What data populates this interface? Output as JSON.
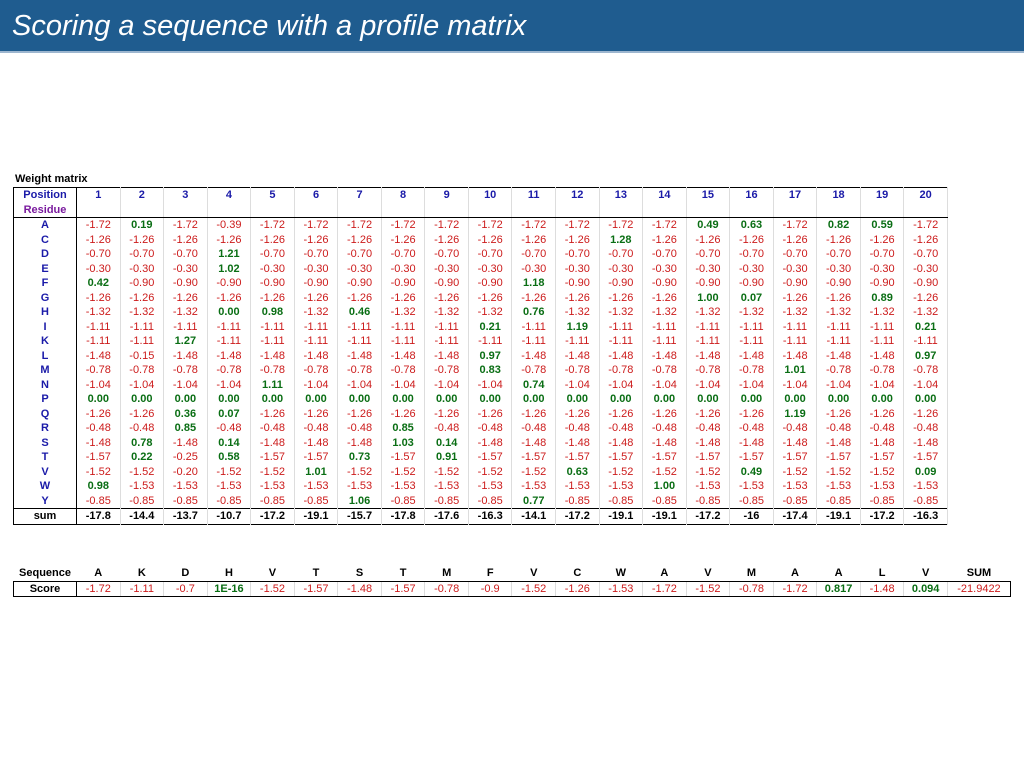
{
  "title": "Scoring a sequence with a profile matrix",
  "weight_matrix": {
    "caption": "Weight matrix",
    "position_label": "Position",
    "residue_label": "Residue",
    "positions": [
      "1",
      "2",
      "3",
      "4",
      "5",
      "6",
      "7",
      "8",
      "9",
      "10",
      "11",
      "12",
      "13",
      "14",
      "15",
      "16",
      "17",
      "18",
      "19",
      "20"
    ],
    "rows": [
      {
        "residue": "A",
        "values": [
          "-1.72",
          "0.19",
          "-1.72",
          "-0.39",
          "-1.72",
          "-1.72",
          "-1.72",
          "-1.72",
          "-1.72",
          "-1.72",
          "-1.72",
          "-1.72",
          "-1.72",
          "-1.72",
          "0.49",
          "0.63",
          "-1.72",
          "0.82",
          "0.59",
          "-1.72"
        ]
      },
      {
        "residue": "C",
        "values": [
          "-1.26",
          "-1.26",
          "-1.26",
          "-1.26",
          "-1.26",
          "-1.26",
          "-1.26",
          "-1.26",
          "-1.26",
          "-1.26",
          "-1.26",
          "-1.26",
          "1.28",
          "-1.26",
          "-1.26",
          "-1.26",
          "-1.26",
          "-1.26",
          "-1.26",
          "-1.26"
        ]
      },
      {
        "residue": "D",
        "values": [
          "-0.70",
          "-0.70",
          "-0.70",
          "1.21",
          "-0.70",
          "-0.70",
          "-0.70",
          "-0.70",
          "-0.70",
          "-0.70",
          "-0.70",
          "-0.70",
          "-0.70",
          "-0.70",
          "-0.70",
          "-0.70",
          "-0.70",
          "-0.70",
          "-0.70",
          "-0.70"
        ]
      },
      {
        "residue": "E",
        "values": [
          "-0.30",
          "-0.30",
          "-0.30",
          "1.02",
          "-0.30",
          "-0.30",
          "-0.30",
          "-0.30",
          "-0.30",
          "-0.30",
          "-0.30",
          "-0.30",
          "-0.30",
          "-0.30",
          "-0.30",
          "-0.30",
          "-0.30",
          "-0.30",
          "-0.30",
          "-0.30"
        ]
      },
      {
        "residue": "F",
        "values": [
          "0.42",
          "-0.90",
          "-0.90",
          "-0.90",
          "-0.90",
          "-0.90",
          "-0.90",
          "-0.90",
          "-0.90",
          "-0.90",
          "1.18",
          "-0.90",
          "-0.90",
          "-0.90",
          "-0.90",
          "-0.90",
          "-0.90",
          "-0.90",
          "-0.90",
          "-0.90"
        ]
      },
      {
        "residue": "G",
        "values": [
          "-1.26",
          "-1.26",
          "-1.26",
          "-1.26",
          "-1.26",
          "-1.26",
          "-1.26",
          "-1.26",
          "-1.26",
          "-1.26",
          "-1.26",
          "-1.26",
          "-1.26",
          "-1.26",
          "1.00",
          "0.07",
          "-1.26",
          "-1.26",
          "0.89",
          "-1.26"
        ]
      },
      {
        "residue": "H",
        "values": [
          "-1.32",
          "-1.32",
          "-1.32",
          "0.00",
          "0.98",
          "-1.32",
          "0.46",
          "-1.32",
          "-1.32",
          "-1.32",
          "0.76",
          "-1.32",
          "-1.32",
          "-1.32",
          "-1.32",
          "-1.32",
          "-1.32",
          "-1.32",
          "-1.32",
          "-1.32"
        ]
      },
      {
        "residue": "I",
        "values": [
          "-1.11",
          "-1.11",
          "-1.11",
          "-1.11",
          "-1.11",
          "-1.11",
          "-1.11",
          "-1.11",
          "-1.11",
          "0.21",
          "-1.11",
          "1.19",
          "-1.11",
          "-1.11",
          "-1.11",
          "-1.11",
          "-1.11",
          "-1.11",
          "-1.11",
          "0.21"
        ]
      },
      {
        "residue": "K",
        "values": [
          "-1.11",
          "-1.11",
          "1.27",
          "-1.11",
          "-1.11",
          "-1.11",
          "-1.11",
          "-1.11",
          "-1.11",
          "-1.11",
          "-1.11",
          "-1.11",
          "-1.11",
          "-1.11",
          "-1.11",
          "-1.11",
          "-1.11",
          "-1.11",
          "-1.11",
          "-1.11"
        ]
      },
      {
        "residue": "L",
        "values": [
          "-1.48",
          "-0.15",
          "-1.48",
          "-1.48",
          "-1.48",
          "-1.48",
          "-1.48",
          "-1.48",
          "-1.48",
          "0.97",
          "-1.48",
          "-1.48",
          "-1.48",
          "-1.48",
          "-1.48",
          "-1.48",
          "-1.48",
          "-1.48",
          "-1.48",
          "0.97"
        ]
      },
      {
        "residue": "M",
        "values": [
          "-0.78",
          "-0.78",
          "-0.78",
          "-0.78",
          "-0.78",
          "-0.78",
          "-0.78",
          "-0.78",
          "-0.78",
          "0.83",
          "-0.78",
          "-0.78",
          "-0.78",
          "-0.78",
          "-0.78",
          "-0.78",
          "1.01",
          "-0.78",
          "-0.78",
          "-0.78"
        ]
      },
      {
        "residue": "N",
        "values": [
          "-1.04",
          "-1.04",
          "-1.04",
          "-1.04",
          "1.11",
          "-1.04",
          "-1.04",
          "-1.04",
          "-1.04",
          "-1.04",
          "0.74",
          "-1.04",
          "-1.04",
          "-1.04",
          "-1.04",
          "-1.04",
          "-1.04",
          "-1.04",
          "-1.04",
          "-1.04"
        ]
      },
      {
        "residue": "P",
        "values": [
          "0.00",
          "0.00",
          "0.00",
          "0.00",
          "0.00",
          "0.00",
          "0.00",
          "0.00",
          "0.00",
          "0.00",
          "0.00",
          "0.00",
          "0.00",
          "0.00",
          "0.00",
          "0.00",
          "0.00",
          "0.00",
          "0.00",
          "0.00"
        ]
      },
      {
        "residue": "Q",
        "values": [
          "-1.26",
          "-1.26",
          "0.36",
          "0.07",
          "-1.26",
          "-1.26",
          "-1.26",
          "-1.26",
          "-1.26",
          "-1.26",
          "-1.26",
          "-1.26",
          "-1.26",
          "-1.26",
          "-1.26",
          "-1.26",
          "1.19",
          "-1.26",
          "-1.26",
          "-1.26"
        ]
      },
      {
        "residue": "R",
        "values": [
          "-0.48",
          "-0.48",
          "0.85",
          "-0.48",
          "-0.48",
          "-0.48",
          "-0.48",
          "0.85",
          "-0.48",
          "-0.48",
          "-0.48",
          "-0.48",
          "-0.48",
          "-0.48",
          "-0.48",
          "-0.48",
          "-0.48",
          "-0.48",
          "-0.48",
          "-0.48"
        ]
      },
      {
        "residue": "S",
        "values": [
          "-1.48",
          "0.78",
          "-1.48",
          "0.14",
          "-1.48",
          "-1.48",
          "-1.48",
          "1.03",
          "0.14",
          "-1.48",
          "-1.48",
          "-1.48",
          "-1.48",
          "-1.48",
          "-1.48",
          "-1.48",
          "-1.48",
          "-1.48",
          "-1.48",
          "-1.48"
        ]
      },
      {
        "residue": "T",
        "values": [
          "-1.57",
          "0.22",
          "-0.25",
          "0.58",
          "-1.57",
          "-1.57",
          "0.73",
          "-1.57",
          "0.91",
          "-1.57",
          "-1.57",
          "-1.57",
          "-1.57",
          "-1.57",
          "-1.57",
          "-1.57",
          "-1.57",
          "-1.57",
          "-1.57",
          "-1.57"
        ]
      },
      {
        "residue": "V",
        "values": [
          "-1.52",
          "-1.52",
          "-0.20",
          "-1.52",
          "-1.52",
          "1.01",
          "-1.52",
          "-1.52",
          "-1.52",
          "-1.52",
          "-1.52",
          "0.63",
          "-1.52",
          "-1.52",
          "-1.52",
          "0.49",
          "-1.52",
          "-1.52",
          "-1.52",
          "0.09"
        ]
      },
      {
        "residue": "W",
        "values": [
          "0.98",
          "-1.53",
          "-1.53",
          "-1.53",
          "-1.53",
          "-1.53",
          "-1.53",
          "-1.53",
          "-1.53",
          "-1.53",
          "-1.53",
          "-1.53",
          "-1.53",
          "1.00",
          "-1.53",
          "-1.53",
          "-1.53",
          "-1.53",
          "-1.53",
          "-1.53"
        ]
      },
      {
        "residue": "Y",
        "values": [
          "-0.85",
          "-0.85",
          "-0.85",
          "-0.85",
          "-0.85",
          "-0.85",
          "1.06",
          "-0.85",
          "-0.85",
          "-0.85",
          "0.77",
          "-0.85",
          "-0.85",
          "-0.85",
          "-0.85",
          "-0.85",
          "-0.85",
          "-0.85",
          "-0.85",
          "-0.85"
        ]
      }
    ],
    "sum_label": "sum",
    "sums": [
      "-17.8",
      "-14.4",
      "-13.7",
      "-10.7",
      "-17.2",
      "-19.1",
      "-15.7",
      "-17.8",
      "-17.6",
      "-16.3",
      "-14.1",
      "-17.2",
      "-19.1",
      "-19.1",
      "-17.2",
      "-16",
      "-17.4",
      "-19.1",
      "-17.2",
      "-16.3"
    ]
  },
  "scoring": {
    "sequence_label": "Sequence",
    "score_label": "Score",
    "sum_header": "SUM",
    "sequence": [
      "A",
      "K",
      "D",
      "H",
      "V",
      "T",
      "S",
      "T",
      "M",
      "F",
      "V",
      "C",
      "W",
      "A",
      "V",
      "M",
      "A",
      "A",
      "L",
      "V"
    ],
    "scores": [
      "-1.72",
      "-1.11",
      "-0.7",
      "1E-16",
      "-1.52",
      "-1.57",
      "-1.48",
      "-1.57",
      "-0.78",
      "-0.9",
      "-1.52",
      "-1.26",
      "-1.53",
      "-1.72",
      "-1.52",
      "-0.78",
      "-1.72",
      "0.817",
      "-1.48",
      "0.094"
    ],
    "sum": "-21.9422"
  },
  "colors": {
    "title_bar": "#1f5c8f",
    "negative": "#cc1b1b",
    "positive": "#0a6e14",
    "position_header": "#1a1aa8",
    "residue_header": "#7a1a9e"
  }
}
